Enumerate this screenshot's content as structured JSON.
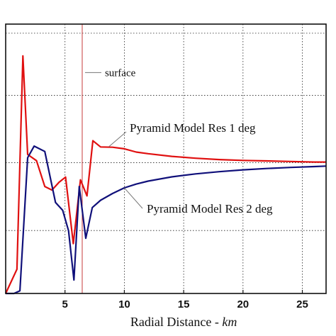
{
  "chart_data": {
    "type": "line",
    "xlabel_text": "Radial Distance - ",
    "xlabel_unit": "km",
    "xlim": [
      0,
      27
    ],
    "x_ticks": [
      {
        "value": 5,
        "label": "5"
      },
      {
        "value": 10,
        "label": "10"
      },
      {
        "value": 15,
        "label": "15"
      },
      {
        "value": 20,
        "label": "20"
      },
      {
        "value": 25,
        "label": "25"
      }
    ],
    "ylim": [
      0,
      1
    ],
    "y_gridlines": [
      0.2337,
      0.4857,
      0.7357,
      0.9661
    ],
    "grid": true,
    "surface_marker": {
      "x": 6.45,
      "label": "surface",
      "color": "#c83a3a"
    },
    "annotations": [
      {
        "text": "Pyramid Model Res 1 deg",
        "series": 0
      },
      {
        "text": "Pyramid Model Res 2 deg",
        "series": 1
      }
    ],
    "series": [
      {
        "name": "Pyramid Model Res 1 deg",
        "color": "#e01010",
        "x": [
          0,
          0.95,
          1.45,
          1.85,
          2.6,
          3.3,
          3.9,
          4.5,
          5.05,
          5.7,
          6.3,
          6.85,
          7.35,
          8.0,
          9.0,
          10.0,
          11.0,
          12.0,
          14.0,
          16.0,
          18.0,
          20.0,
          22.0,
          24.0,
          26.0,
          27.0
        ],
        "y": [
          0.0,
          0.09,
          0.882,
          0.516,
          0.493,
          0.397,
          0.384,
          0.413,
          0.432,
          0.185,
          0.422,
          0.362,
          0.567,
          0.544,
          0.543,
          0.537,
          0.525,
          0.519,
          0.509,
          0.502,
          0.497,
          0.494,
          0.492,
          0.49,
          0.488,
          0.488
        ]
      },
      {
        "name": "Pyramid Model Res 2 deg",
        "color": "#10107a",
        "x": [
          0,
          0.7,
          1.2,
          1.85,
          2.4,
          3.3,
          4.2,
          4.8,
          5.3,
          5.75,
          6.2,
          6.75,
          7.3,
          8.0,
          9.0,
          10.0,
          11.0,
          12.0,
          14.0,
          16.0,
          18.0,
          20.0,
          22.0,
          24.0,
          26.0,
          27.0
        ],
        "y": [
          0.0,
          0.0,
          0.01,
          0.504,
          0.547,
          0.527,
          0.338,
          0.309,
          0.233,
          0.05,
          0.397,
          0.205,
          0.319,
          0.346,
          0.371,
          0.392,
          0.406,
          0.417,
          0.433,
          0.444,
          0.452,
          0.459,
          0.464,
          0.468,
          0.471,
          0.473
        ]
      }
    ]
  }
}
